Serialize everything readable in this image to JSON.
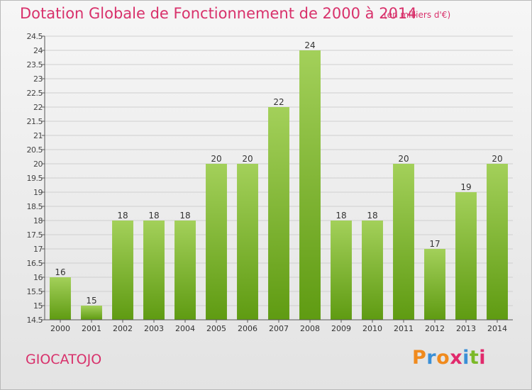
{
  "header": {
    "title": "Dotation Globale de Fonctionnement de 2000 à 2014",
    "subtitle": "(en milliers d'€)"
  },
  "footer": {
    "commune": "GIOCATOJO",
    "logo_letters": [
      "P",
      "r",
      "o",
      "x",
      "i",
      "t",
      "i"
    ],
    "logo_colors": [
      "#f08a1d",
      "#3a8fd6",
      "#f08a1d",
      "#e12a6c",
      "#3a8fd6",
      "#7bb928",
      "#e12a6c"
    ]
  },
  "colors": {
    "bar_top": "#a3d05a",
    "bar_bottom": "#5f9b12",
    "title": "#d8316b",
    "grid": "#cfcfcf",
    "axis": "#555555"
  },
  "chart_data": {
    "type": "bar",
    "title": "Dotation Globale de Fonctionnement de 2000 à 2014",
    "subtitle": "(en milliers d'€)",
    "categories": [
      "2000",
      "2001",
      "2002",
      "2003",
      "2004",
      "2005",
      "2006",
      "2007",
      "2008",
      "2009",
      "2010",
      "2011",
      "2012",
      "2013",
      "2014"
    ],
    "values": [
      16,
      15,
      18,
      18,
      18,
      20,
      20,
      22,
      24,
      18,
      18,
      20,
      17,
      19,
      20
    ],
    "xlabel": "",
    "ylabel": "",
    "ylim": [
      14.5,
      24.5
    ],
    "ytick_step": 0.5,
    "yticks": [
      "14.5",
      "15",
      "15.5",
      "16",
      "16.5",
      "17",
      "17.5",
      "18",
      "18.5",
      "19",
      "19.5",
      "20",
      "20.5",
      "21",
      "21.5",
      "22",
      "22.5",
      "23",
      "23.5",
      "24",
      "24.5"
    ],
    "grid": true,
    "data_labels": true
  }
}
